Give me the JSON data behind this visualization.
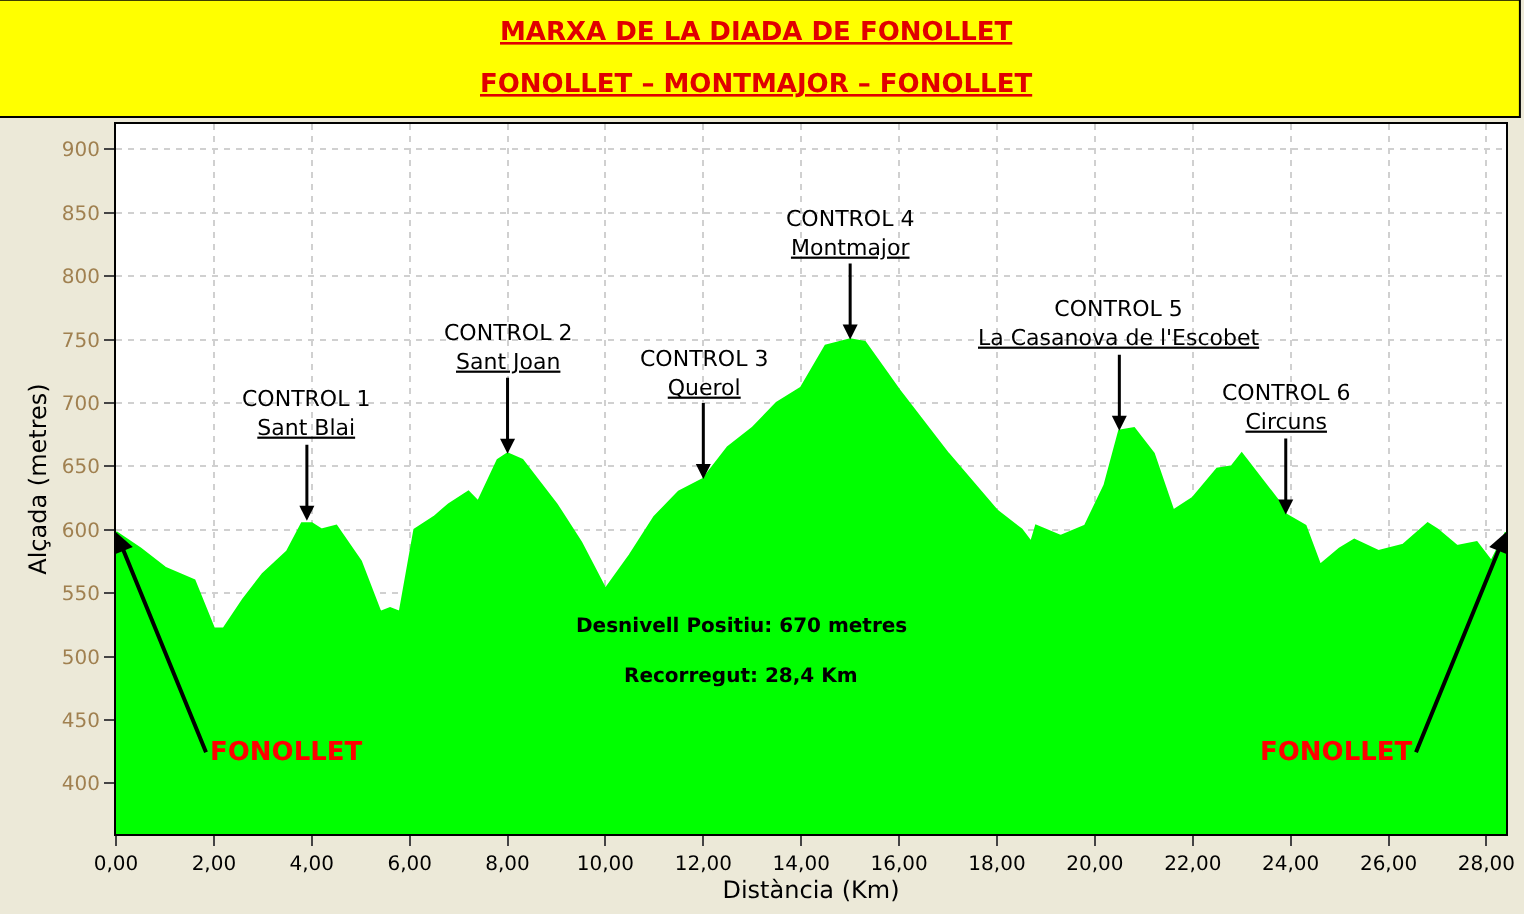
{
  "chart_data": {
    "type": "area",
    "title": "MARXA DE LA DIADA DE FONOLLET",
    "subtitle": "FONOLLET – MONTMAJOR – FONOLLET",
    "xlabel": "Distància (Km)",
    "ylabel": "Alçada (metres)",
    "x": [
      0,
      0.5,
      1.0,
      1.6,
      2.0,
      2.2,
      2.6,
      3.0,
      3.5,
      3.8,
      4.0,
      4.2,
      4.5,
      5.0,
      5.4,
      5.6,
      5.8,
      6.1,
      6.5,
      6.8,
      7.2,
      7.4,
      7.8,
      8.0,
      8.3,
      9.0,
      9.5,
      10.0,
      10.5,
      11.0,
      11.5,
      12.0,
      12.5,
      13.0,
      13.5,
      14.0,
      14.5,
      15.0,
      15.3,
      16.0,
      17.0,
      18.0,
      18.5,
      18.7,
      18.8,
      19.3,
      19.8,
      20.2,
      20.5,
      20.8,
      21.2,
      21.6,
      22.0,
      22.5,
      22.8,
      23.0,
      23.3,
      23.8,
      23.9,
      24.3,
      24.6,
      25.0,
      25.3,
      25.8,
      26.3,
      26.8,
      27.0,
      27.4,
      27.8,
      28.1,
      28.4
    ],
    "series": [
      {
        "color": "#00ff00",
        "values": [
          598,
          585,
          570,
          560,
          522,
          522,
          545,
          565,
          583,
          605,
          605,
          600,
          603,
          575,
          535,
          538,
          535,
          600,
          610,
          620,
          630,
          622,
          655,
          660,
          655,
          620,
          590,
          553,
          580,
          610,
          630,
          640,
          665,
          680,
          700,
          712,
          745,
          750,
          748,
          710,
          660,
          615,
          600,
          590,
          603,
          595,
          603,
          635,
          678,
          680,
          660,
          615,
          625,
          648,
          650,
          660,
          645,
          620,
          612,
          603,
          572,
          585,
          592,
          583,
          588,
          605,
          600,
          587,
          590,
          575,
          598
        ]
      }
    ],
    "xlim": [
      0,
      28.4
    ],
    "ylim": [
      360,
      920
    ],
    "xticks": [
      {
        "value": 0,
        "label": "0,00"
      },
      {
        "value": 2,
        "label": "2,00"
      },
      {
        "value": 4,
        "label": "4,00"
      },
      {
        "value": 6,
        "label": "6,00"
      },
      {
        "value": 8,
        "label": "8,00"
      },
      {
        "value": 10,
        "label": "10,00"
      },
      {
        "value": 12,
        "label": "12,00"
      },
      {
        "value": 14,
        "label": "14,00"
      },
      {
        "value": 16,
        "label": "16,00"
      },
      {
        "value": 18,
        "label": "18,00"
      },
      {
        "value": 20,
        "label": "20,00"
      },
      {
        "value": 22,
        "label": "22,00"
      },
      {
        "value": 24,
        "label": "24,00"
      },
      {
        "value": 26,
        "label": "26,00"
      },
      {
        "value": 28,
        "label": "28,00"
      }
    ],
    "yticks": [
      400,
      450,
      500,
      550,
      600,
      650,
      700,
      750,
      800,
      850,
      900
    ],
    "grid": true,
    "annotations": [
      {
        "text": "CONTROL 1\nSant Blai",
        "x": 3.9,
        "y": 607
      },
      {
        "text": "CONTROL 2\nSant Joan",
        "x": 8.0,
        "y": 660
      },
      {
        "text": "CONTROL 3\nQuerol",
        "x": 12.0,
        "y": 640
      },
      {
        "text": "CONTROL 4\nMontmajor",
        "x": 15.0,
        "y": 750
      },
      {
        "text": "CONTROL 5\nLa Casanova de l'Escobet",
        "x": 20.5,
        "y": 678
      },
      {
        "text": "CONTROL 6\nCircuns",
        "x": 23.9,
        "y": 612
      },
      {
        "text": "FONOLLET",
        "x": 0,
        "y": 598
      },
      {
        "text": "FONOLLET",
        "x": 28.4,
        "y": 598
      },
      "Desnivell Positiu: 670 metres",
      "Recorregut: 28,4 Km"
    ]
  }
}
